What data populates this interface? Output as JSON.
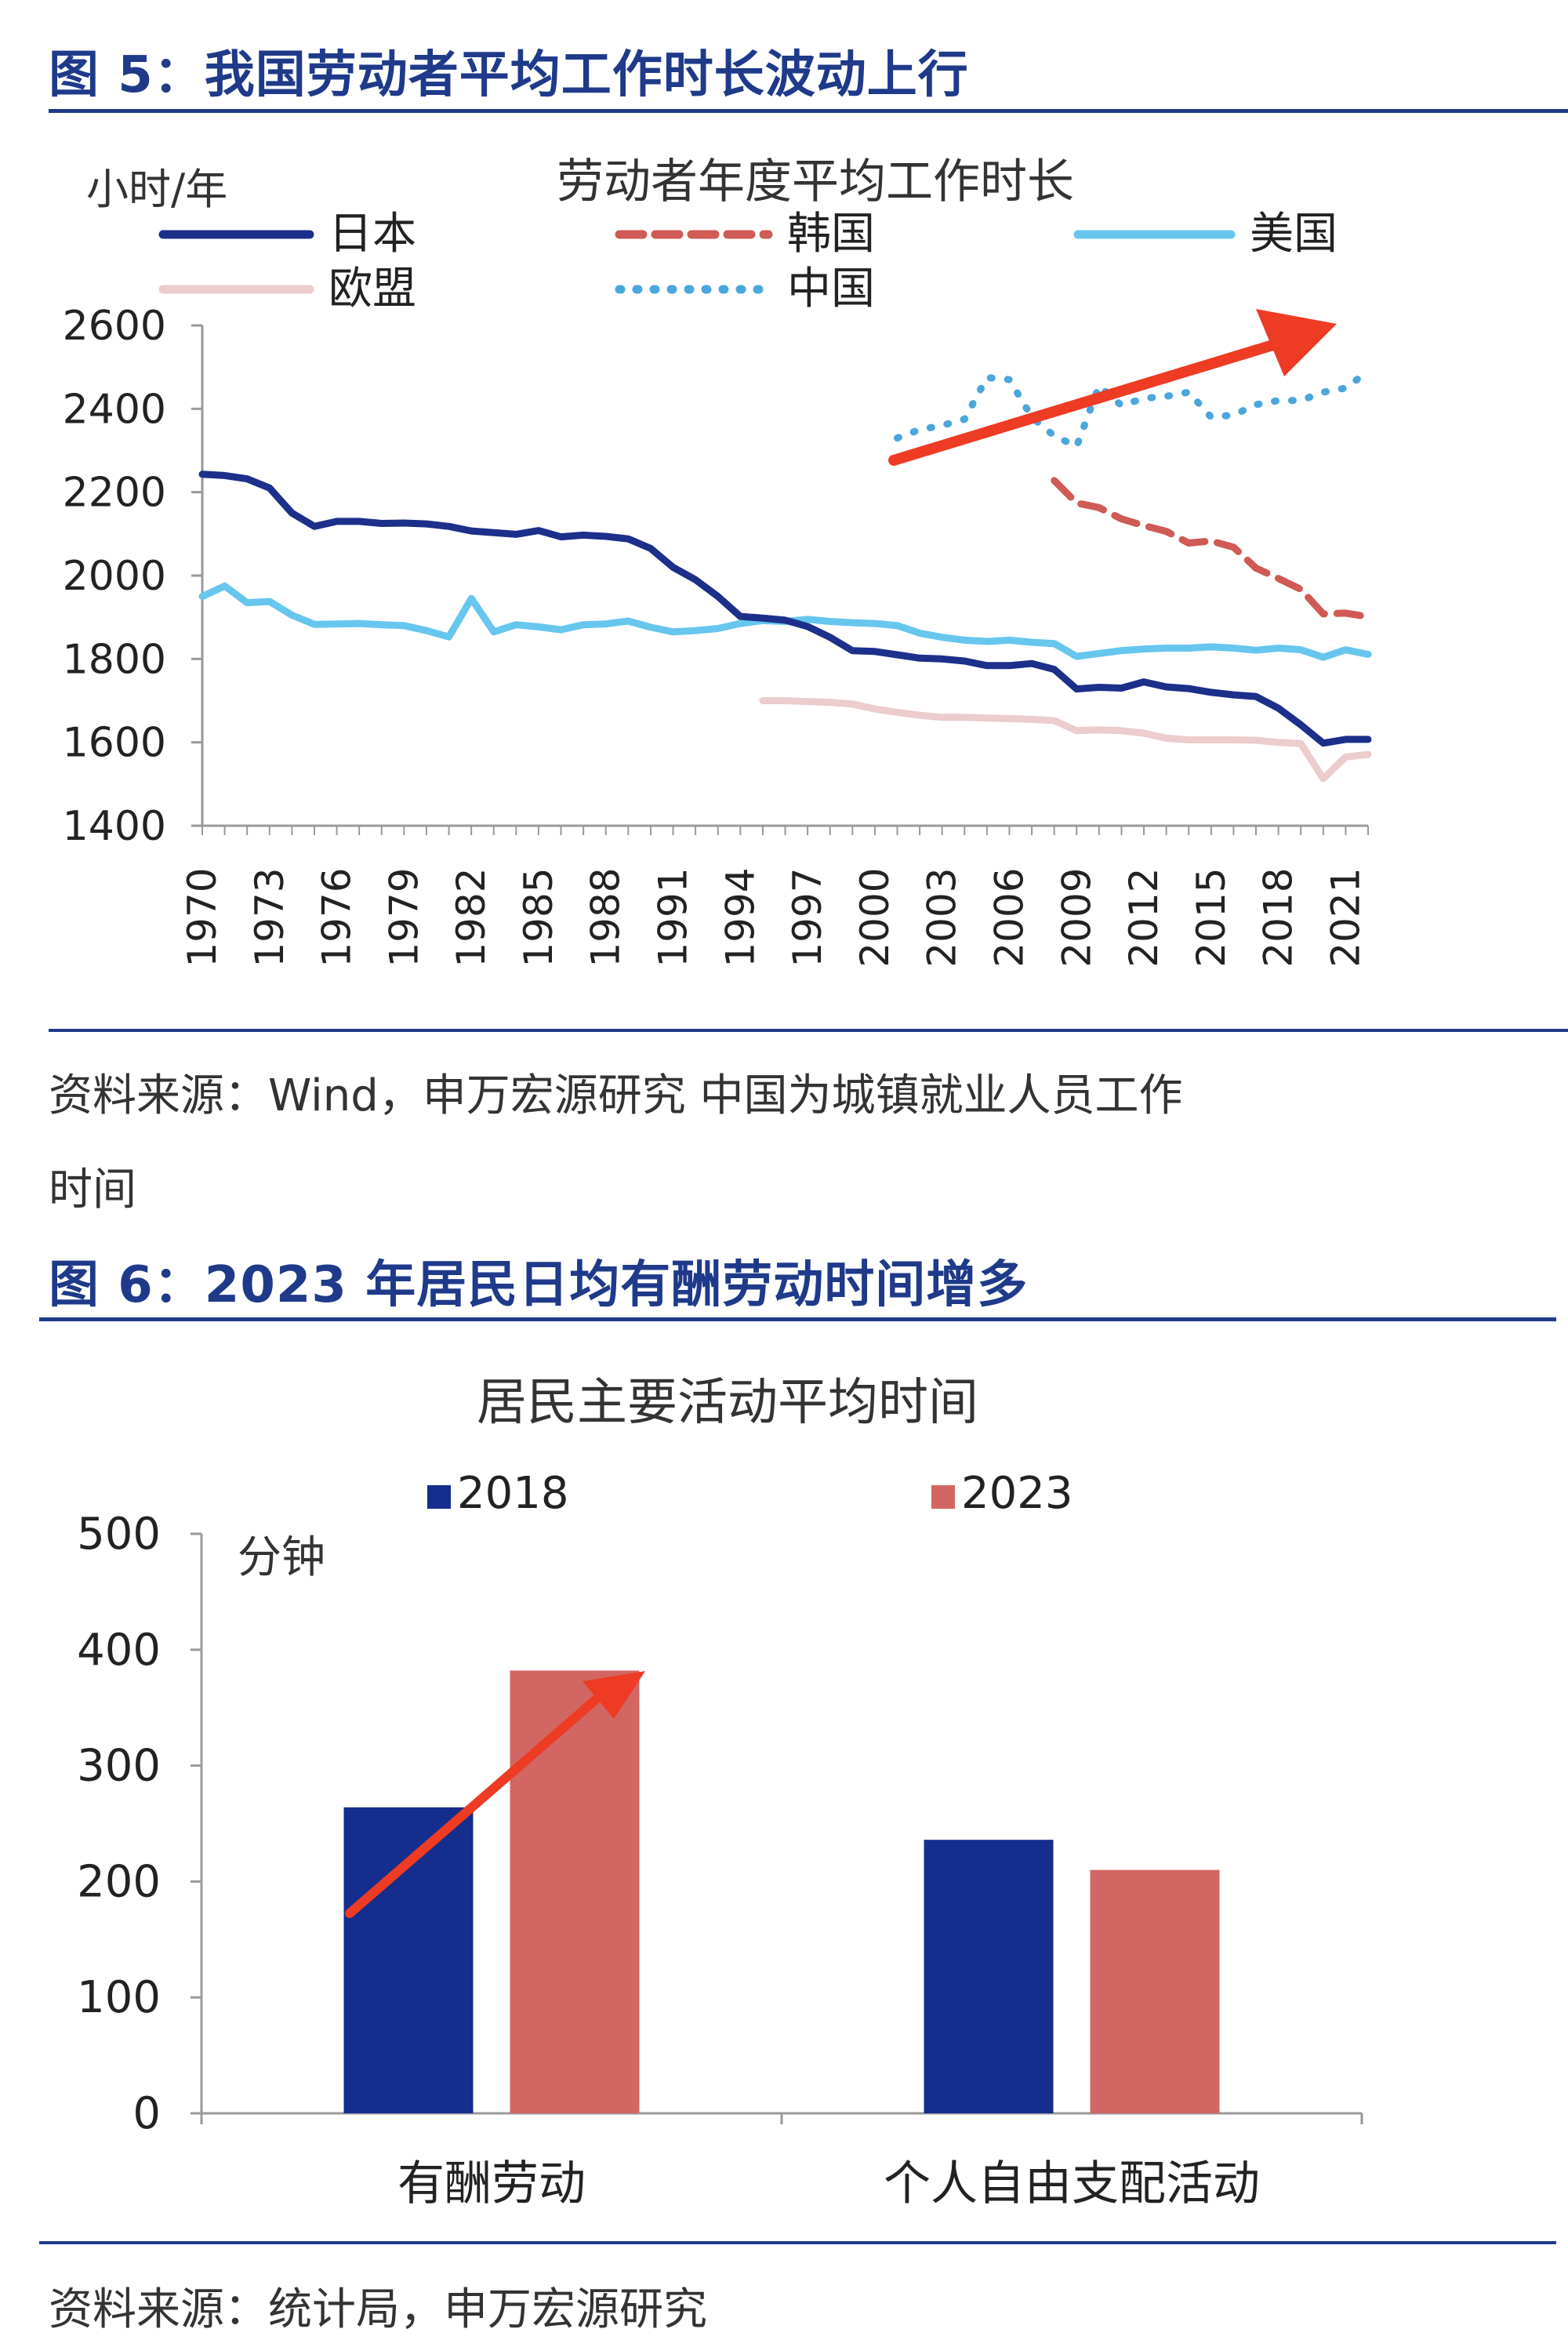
{
  "figure5": {
    "heading": "图 5：我国劳动者平均工作时长波动上行",
    "source_line1": "资料来源：Wind，申万宏源研究 中国为城镇就业人员工作",
    "source_line2": "时间"
  },
  "figure6": {
    "heading": "图 6：2023 年居民日均有酬劳动时间增多",
    "source": "资料来源：统计局，申万宏源研究"
  },
  "chart_data": [
    {
      "type": "line",
      "title": "劳动者年度平均工作时长",
      "ylabel": "小时/年",
      "xlabel": "",
      "ylim": [
        1400,
        2600
      ],
      "xlim": [
        1970,
        2022
      ],
      "yticks": [
        1400,
        1600,
        1800,
        2000,
        2200,
        2400,
        2600
      ],
      "xticks": [
        1970,
        1973,
        1976,
        1979,
        1982,
        1985,
        1988,
        1991,
        1994,
        1997,
        2000,
        2003,
        2006,
        2009,
        2012,
        2015,
        2018,
        2021
      ],
      "grid": false,
      "legend": "top",
      "series": [
        {
          "name": "日本",
          "color": "#1c2f8a",
          "style": "solid",
          "width": 9,
          "x": [
            1970,
            1971,
            1972,
            1973,
            1974,
            1975,
            1976,
            1977,
            1978,
            1979,
            1980,
            1981,
            1982,
            1983,
            1984,
            1985,
            1986,
            1987,
            1988,
            1989,
            1990,
            1991,
            1992,
            1993,
            1994,
            1995,
            1996,
            1997,
            1998,
            1999,
            2000,
            2001,
            2002,
            2003,
            2004,
            2005,
            2006,
            2007,
            2008,
            2009,
            2010,
            2011,
            2012,
            2013,
            2014,
            2015,
            2016,
            2017,
            2018,
            2019,
            2020,
            2021,
            2022
          ],
          "y": [
            2243,
            2240,
            2232,
            2210,
            2150,
            2118,
            2130,
            2130,
            2125,
            2126,
            2124,
            2118,
            2107,
            2103,
            2099,
            2108,
            2093,
            2097,
            2094,
            2088,
            2065,
            2020,
            1990,
            1950,
            1902,
            1898,
            1893,
            1878,
            1852,
            1820,
            1818,
            1810,
            1802,
            1800,
            1795,
            1784,
            1784,
            1789,
            1775,
            1728,
            1732,
            1730,
            1745,
            1733,
            1729,
            1720,
            1714,
            1710,
            1682,
            1642,
            1598,
            1607,
            1607
          ]
        },
        {
          "name": "韩国",
          "color": "#d05a55",
          "style": "dashed",
          "width": 9,
          "x": [
            2008,
            2009,
            2010,
            2011,
            2012,
            2013,
            2014,
            2015,
            2016,
            2017,
            2018,
            2019,
            2020,
            2021,
            2022
          ],
          "y": [
            2228,
            2174,
            2163,
            2136,
            2120,
            2106,
            2078,
            2083,
            2068,
            2018,
            1993,
            1967,
            1908,
            1910,
            1901
          ]
        },
        {
          "name": "美国",
          "color": "#67c6ee",
          "style": "solid",
          "width": 9,
          "x": [
            1970,
            1971,
            1972,
            1973,
            1974,
            1975,
            1976,
            1977,
            1978,
            1979,
            1980,
            1981,
            1982,
            1983,
            1984,
            1985,
            1986,
            1987,
            1988,
            1989,
            1990,
            1991,
            1992,
            1993,
            1994,
            1995,
            1996,
            1997,
            1998,
            1999,
            2000,
            2001,
            2002,
            2003,
            2004,
            2005,
            2006,
            2007,
            2008,
            2009,
            2010,
            2011,
            2012,
            2013,
            2014,
            2015,
            2016,
            2017,
            2018,
            2019,
            2020,
            2021,
            2022
          ],
          "y": [
            1950,
            1975,
            1935,
            1938,
            1905,
            1883,
            1884,
            1885,
            1882,
            1880,
            1868,
            1853,
            1945,
            1865,
            1882,
            1877,
            1870,
            1882,
            1884,
            1891,
            1876,
            1865,
            1868,
            1873,
            1885,
            1892,
            1890,
            1895,
            1890,
            1887,
            1885,
            1880,
            1862,
            1852,
            1845,
            1842,
            1845,
            1840,
            1837,
            1806,
            1813,
            1820,
            1824,
            1826,
            1826,
            1829,
            1826,
            1821,
            1826,
            1822,
            1804,
            1822,
            1811
          ]
        },
        {
          "name": "欧盟",
          "color": "#eccccc",
          "style": "solid",
          "width": 9,
          "x": [
            1995,
            1996,
            1997,
            1998,
            1999,
            2000,
            2001,
            2002,
            2003,
            2004,
            2005,
            2006,
            2007,
            2008,
            2009,
            2010,
            2011,
            2012,
            2013,
            2014,
            2015,
            2016,
            2017,
            2018,
            2019,
            2020,
            2021,
            2022
          ],
          "y": [
            1700,
            1700,
            1698,
            1696,
            1692,
            1680,
            1672,
            1665,
            1660,
            1660,
            1658,
            1657,
            1655,
            1652,
            1628,
            1630,
            1628,
            1622,
            1610,
            1606,
            1606,
            1606,
            1605,
            1600,
            1597,
            1513,
            1565,
            1571
          ]
        },
        {
          "name": "中国",
          "color": "#4aa7dc",
          "style": "dotted",
          "width": 9,
          "x": [
            2001,
            2002,
            2003,
            2004,
            2005,
            2006,
            2007,
            2008,
            2009,
            2010,
            2011,
            2012,
            2013,
            2014,
            2015,
            2016,
            2017,
            2018,
            2019,
            2020,
            2021,
            2022
          ],
          "y": [
            2330,
            2350,
            2360,
            2375,
            2475,
            2470,
            2380,
            2335,
            2310,
            2455,
            2408,
            2425,
            2430,
            2440,
            2380,
            2385,
            2410,
            2420,
            2420,
            2440,
            2450,
            2490
          ]
        }
      ]
    },
    {
      "type": "bar",
      "title": "居民主要活动平均时间",
      "ylabel": "分钟",
      "xlabel": "",
      "ylim": [
        0,
        500
      ],
      "yticks": [
        0,
        100,
        200,
        300,
        400,
        500
      ],
      "grid": false,
      "legend": "top",
      "categories": [
        "有酬劳动",
        "个人自由支配活动"
      ],
      "series": [
        {
          "name": "2018",
          "color": "#152d8c",
          "values": [
            264,
            236
          ]
        },
        {
          "name": "2023",
          "color": "#d26663",
          "values": [
            382,
            210
          ]
        }
      ]
    }
  ]
}
